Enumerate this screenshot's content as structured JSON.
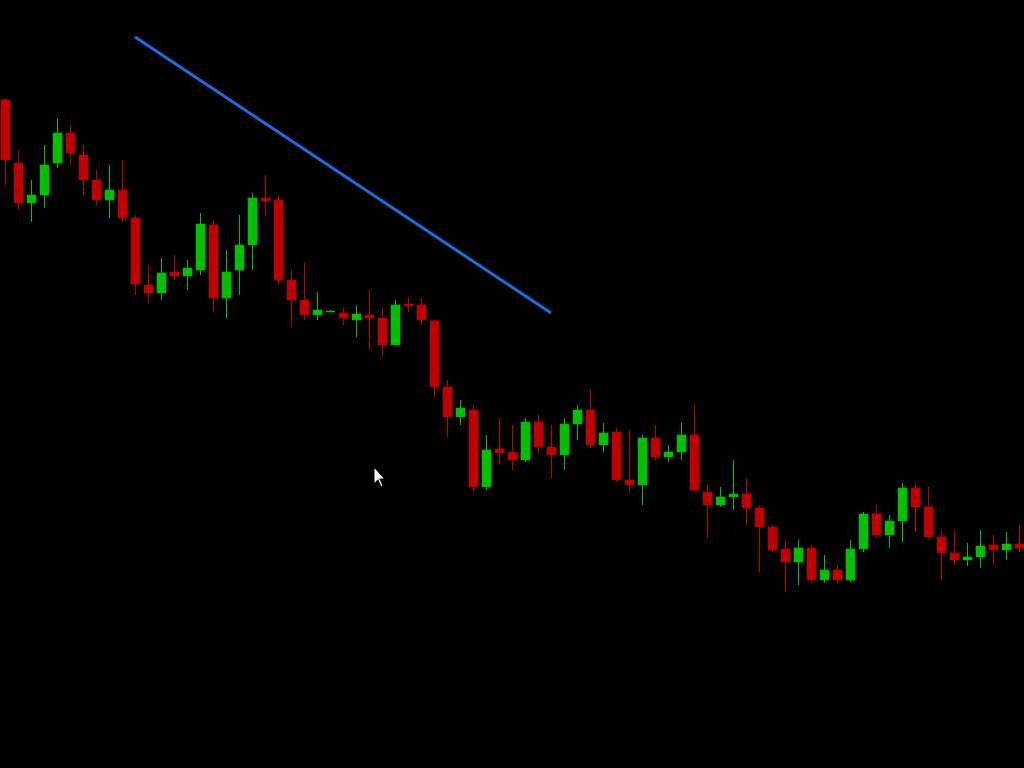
{
  "chart_data": {
    "type": "candlestick",
    "up_color": "#00c000",
    "down_color": "#c00000",
    "ylim": [
      0,
      768
    ],
    "open": [
      668,
      605,
      565,
      573,
      605,
      635,
      613,
      588,
      568,
      578,
      550,
      483,
      475,
      496,
      492,
      498,
      543,
      470,
      498,
      523,
      570,
      568,
      488,
      468,
      453,
      457,
      455,
      448,
      453,
      450,
      423,
      464,
      463,
      447,
      381,
      351,
      358,
      281,
      319,
      316,
      308,
      346,
      321,
      313,
      344,
      358,
      323,
      336,
      288,
      283,
      330,
      311,
      316,
      333,
      276,
      263,
      271,
      274,
      260,
      241,
      219,
      206,
      220,
      188,
      198,
      188,
      219,
      254,
      233,
      247,
      280,
      261,
      231,
      215,
      208,
      211,
      223,
      218,
      224
    ],
    "close": [
      608,
      565,
      573,
      603,
      635,
      615,
      588,
      568,
      578,
      550,
      484,
      475,
      495,
      492,
      500,
      544,
      470,
      496,
      523,
      570,
      567,
      488,
      468,
      453,
      458,
      457,
      450,
      454,
      450,
      423,
      463,
      462,
      448,
      381,
      351,
      360,
      281,
      318,
      315,
      308,
      346,
      321,
      313,
      344,
      358,
      323,
      335,
      288,
      283,
      330,
      311,
      316,
      333,
      278,
      263,
      271,
      274,
      260,
      241,
      218,
      206,
      220,
      188,
      198,
      188,
      219,
      254,
      233,
      247,
      280,
      261,
      231,
      215,
      208,
      211,
      222,
      218,
      224,
      220
    ],
    "high": [
      670,
      618,
      588,
      623,
      650,
      643,
      623,
      598,
      603,
      608,
      553,
      503,
      510,
      513,
      508,
      555,
      548,
      518,
      553,
      575,
      593,
      573,
      498,
      506,
      476,
      458,
      460,
      463,
      478,
      460,
      468,
      471,
      470,
      448,
      388,
      368,
      363,
      333,
      350,
      343,
      350,
      353,
      343,
      350,
      363,
      378,
      345,
      340,
      338,
      333,
      343,
      323,
      346,
      363,
      283,
      281,
      308,
      290,
      263,
      243,
      228,
      228,
      223,
      213,
      203,
      228,
      256,
      263,
      253,
      285,
      285,
      281,
      238,
      238,
      225,
      238,
      233,
      236,
      243
    ],
    "low": [
      583,
      558,
      546,
      560,
      600,
      603,
      573,
      563,
      550,
      546,
      473,
      465,
      468,
      488,
      478,
      493,
      456,
      450,
      473,
      498,
      553,
      483,
      441,
      448,
      448,
      456,
      443,
      431,
      418,
      411,
      422,
      456,
      443,
      371,
      331,
      343,
      276,
      278,
      303,
      298,
      306,
      315,
      290,
      298,
      328,
      320,
      316,
      286,
      275,
      263,
      308,
      306,
      308,
      276,
      230,
      261,
      258,
      243,
      196,
      216,
      176,
      183,
      185,
      185,
      185,
      186,
      216,
      230,
      220,
      226,
      236,
      228,
      188,
      203,
      202,
      200,
      203,
      208,
      216
    ]
  }
}
